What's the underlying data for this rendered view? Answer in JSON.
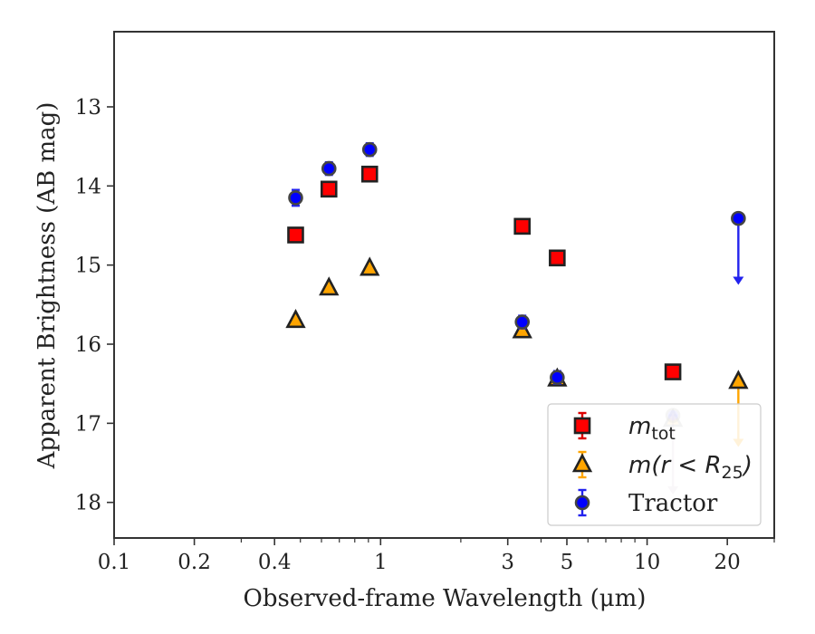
{
  "chart_data": {
    "type": "scatter",
    "xlabel": "Observed-frame Wavelength (μm)",
    "ylabel": "Apparent Brightness (AB mag)",
    "x_scale": "log",
    "y_inverted": true,
    "xlim": [
      0.1,
      30
    ],
    "ylim": [
      18.45,
      12.05
    ],
    "x_ticks": [
      {
        "value": 0.1,
        "label": "0.1"
      },
      {
        "value": 0.2,
        "label": "0.2"
      },
      {
        "value": 0.4,
        "label": "0.4"
      },
      {
        "value": 1,
        "label": "1"
      },
      {
        "value": 3,
        "label": "3"
      },
      {
        "value": 5,
        "label": "5"
      },
      {
        "value": 10,
        "label": "10"
      },
      {
        "value": 20,
        "label": "20"
      }
    ],
    "y_ticks": [
      {
        "value": 13,
        "label": "13"
      },
      {
        "value": 14,
        "label": "14"
      },
      {
        "value": 15,
        "label": "15"
      },
      {
        "value": 16,
        "label": "16"
      },
      {
        "value": 17,
        "label": "17"
      },
      {
        "value": 18,
        "label": "18"
      }
    ],
    "grid": false,
    "legend_position": "lower-right",
    "series": [
      {
        "name": "m_tot",
        "label_main": "m",
        "label_sub": "tot",
        "marker": "square",
        "face_color": "#ff0000",
        "error_color": "#dd0000",
        "points": [
          {
            "x": 0.48,
            "y": 14.62,
            "err": 0.07
          },
          {
            "x": 0.64,
            "y": 14.04,
            "err": 0.06
          },
          {
            "x": 0.91,
            "y": 13.85,
            "err": 0.06
          },
          {
            "x": 3.4,
            "y": 14.51,
            "err": 0.05
          },
          {
            "x": 4.6,
            "y": 14.91,
            "err": 0.05
          },
          {
            "x": 12.5,
            "y": 16.35,
            "err": 0.05
          }
        ]
      },
      {
        "name": "m(r < R_25)",
        "label_main": "m(r < R",
        "label_sub": "25",
        "label_tail": ")",
        "marker": "triangle",
        "face_color": "#ffa500",
        "error_color": "#ffa500",
        "points": [
          {
            "x": 0.48,
            "y": 15.7,
            "err": 0.0
          },
          {
            "x": 0.64,
            "y": 15.29,
            "err": 0.0
          },
          {
            "x": 0.91,
            "y": 15.04,
            "err": 0.0
          },
          {
            "x": 3.4,
            "y": 15.83,
            "err": 0.0
          },
          {
            "x": 4.6,
            "y": 16.44,
            "err": 0.0
          },
          {
            "x": 12.5,
            "y": 16.95,
            "upper_limit_to": 17.9,
            "faded": true
          },
          {
            "x": 22,
            "y": 16.47,
            "upper_limit_to": 17.3
          }
        ]
      },
      {
        "name": "Tractor",
        "marker": "circle",
        "face_color": "#0000ff",
        "error_color": "#2222ee",
        "points": [
          {
            "x": 0.48,
            "y": 14.15,
            "err": 0.1
          },
          {
            "x": 0.64,
            "y": 13.78,
            "err": 0.08
          },
          {
            "x": 0.91,
            "y": 13.54,
            "err": 0.08
          },
          {
            "x": 3.4,
            "y": 15.72,
            "err": 0.08
          },
          {
            "x": 4.6,
            "y": 16.42,
            "err": 0.08
          },
          {
            "x": 12.5,
            "y": 16.9,
            "upper_limit_to": 17.9,
            "faded": true
          },
          {
            "x": 22,
            "y": 14.41,
            "upper_limit_to": 15.25
          }
        ]
      }
    ]
  }
}
